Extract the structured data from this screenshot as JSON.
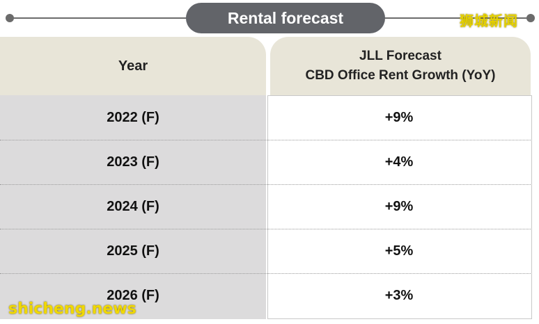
{
  "title": "Rental forecast",
  "table": {
    "header_year": "Year",
    "header_forecast_line1": "JLL Forecast",
    "header_forecast_line2": "CBD Office Rent Growth (YoY)",
    "rows": [
      {
        "year": "2022 (F)",
        "value": "+9%"
      },
      {
        "year": "2023 (F)",
        "value": "+4%"
      },
      {
        "year": "2024 (F)",
        "value": "+9%"
      },
      {
        "year": "2025 (F)",
        "value": "+5%"
      },
      {
        "year": "2026 (F)",
        "value": "+3%"
      }
    ]
  },
  "watermark_top": "狮城新闻",
  "watermark_bottom": "shicheng.news",
  "colors": {
    "pill": "#626469",
    "header_bg": "#e8e5d8",
    "year_col_bg": "#dcdbdc",
    "watermark": "#f0d800"
  }
}
